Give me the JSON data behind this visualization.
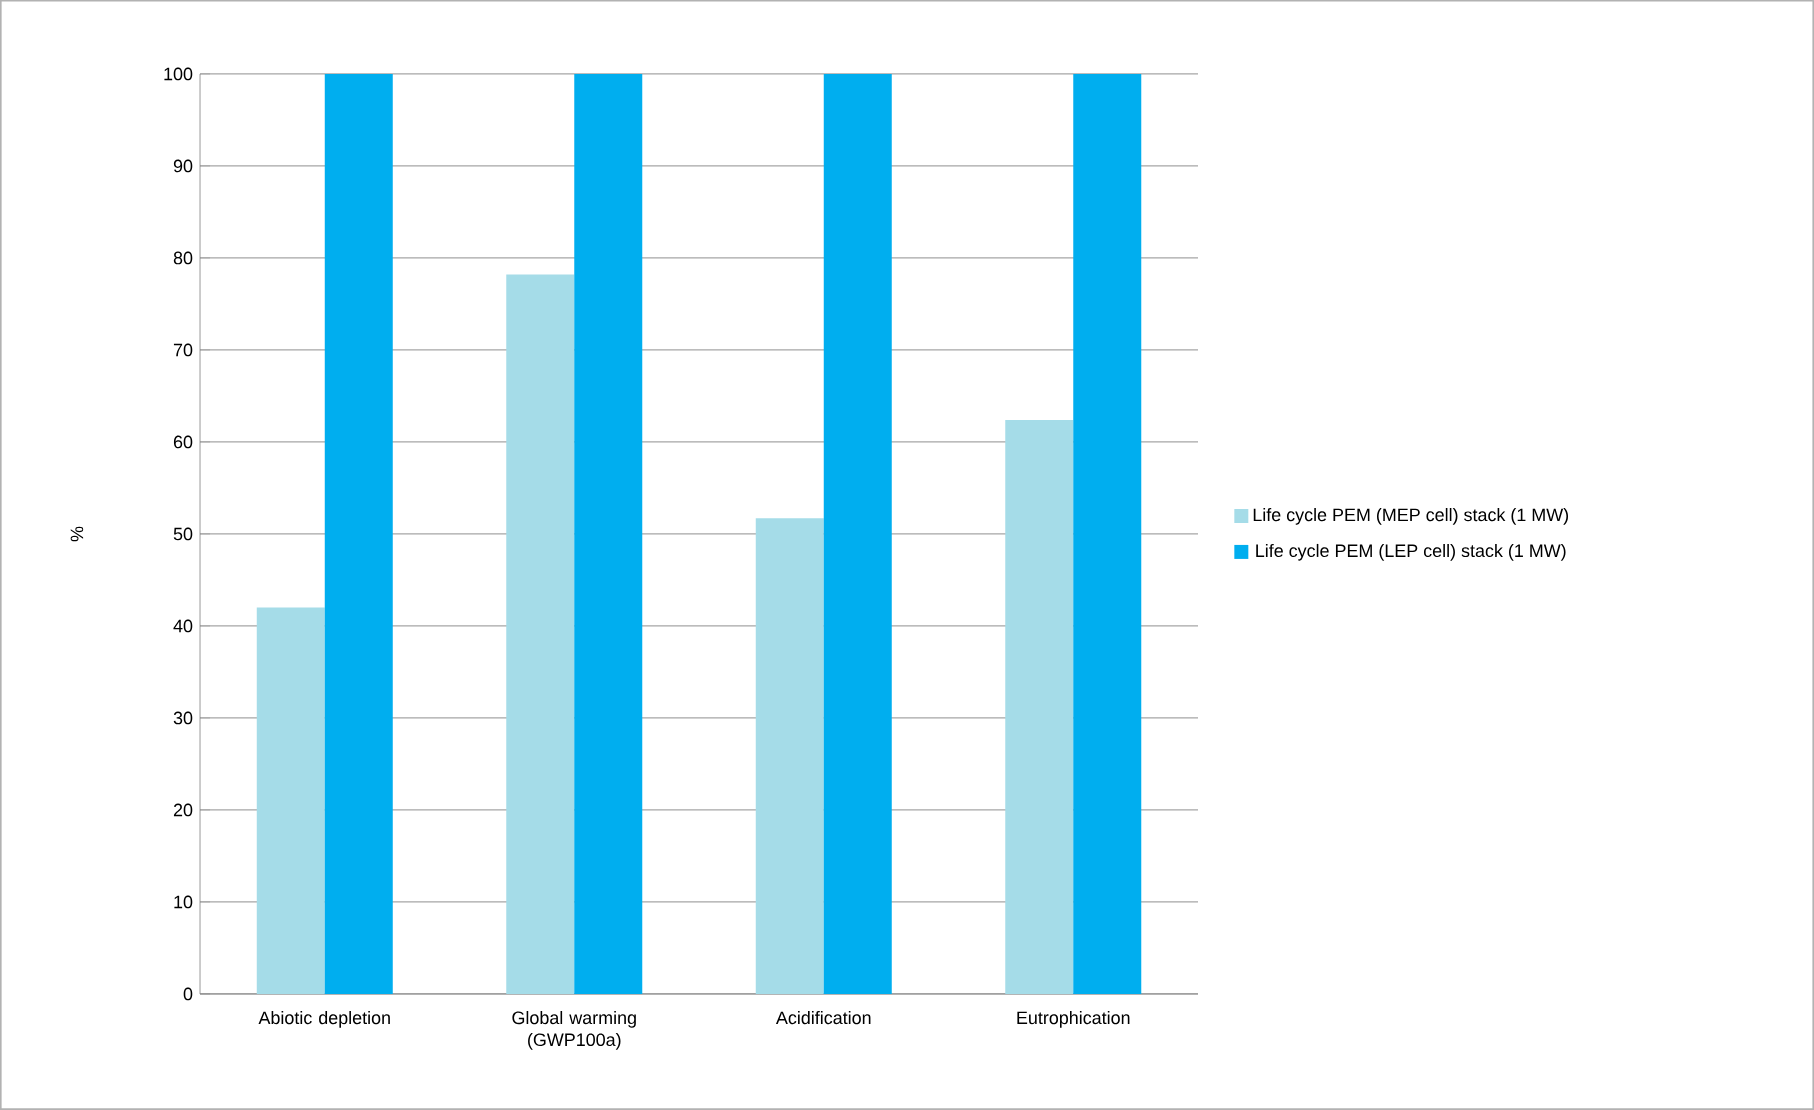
{
  "chart_data": {
    "type": "bar",
    "ylabel": "%",
    "categories": [
      "Abiotic depletion",
      "Global warming (GWP100a)",
      "Acidification",
      "Eutrophication"
    ],
    "series": [
      {
        "name": "Life cycle PEM (MEP cell) stack (1 MW)",
        "color": "#a5dce8",
        "values": [
          42.0,
          78.2,
          51.7,
          62.4
        ]
      },
      {
        "name": "Life cycle PEM (LEP cell) stack (1 MW)",
        "color": "#00aeef",
        "values": [
          100,
          100,
          100,
          100
        ]
      }
    ],
    "ylim": [
      0,
      100
    ],
    "yticks": [
      0,
      10,
      20,
      30,
      40,
      50,
      60,
      70,
      80,
      90,
      100
    ],
    "grid": "y",
    "legend": "right"
  }
}
